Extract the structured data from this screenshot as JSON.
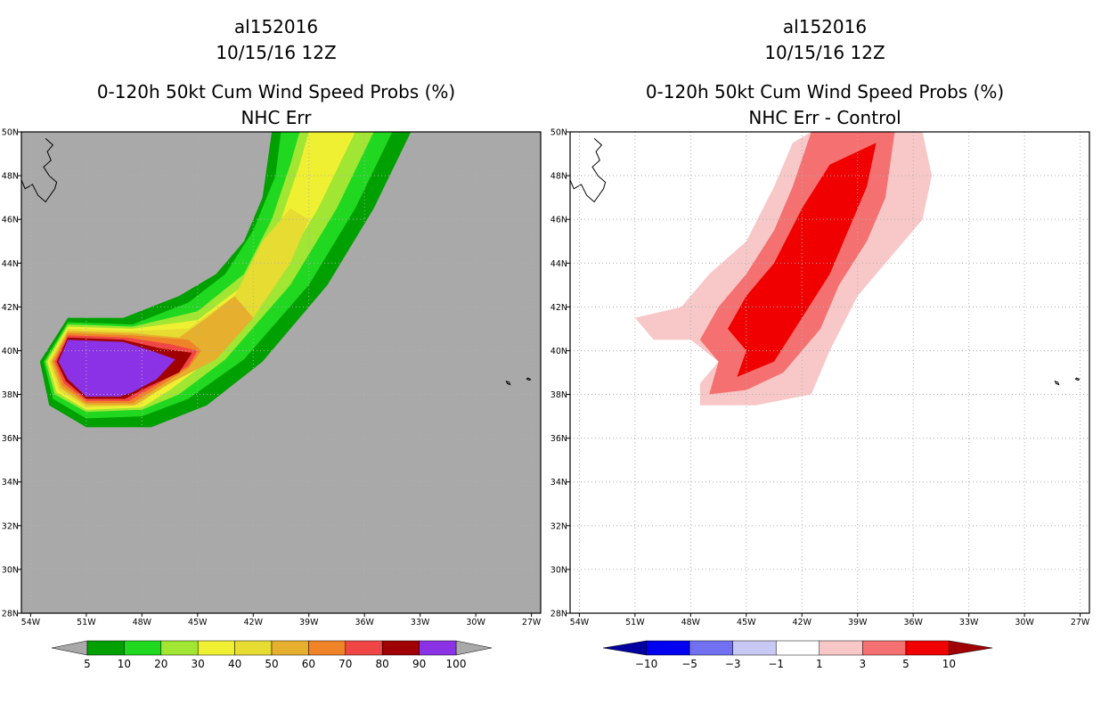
{
  "chart_data": [
    {
      "type": "heatmap",
      "storm_id": "al152016",
      "datetime": "10/15/16 12Z",
      "title": "0-120h 50kt Cum Wind Speed Probs (%)",
      "subtitle": "NHC Err",
      "xlabel": "",
      "ylabel": "",
      "x_ticks": [
        "54W",
        "51W",
        "48W",
        "45W",
        "42W",
        "39W",
        "36W",
        "33W",
        "30W",
        "27W"
      ],
      "y_ticks": [
        "28N",
        "30N",
        "32N",
        "34N",
        "36N",
        "38N",
        "40N",
        "42N",
        "44N",
        "46N",
        "48N",
        "50N"
      ],
      "lon_range": [
        -54.5,
        -26.5
      ],
      "lat_range": [
        28,
        50
      ],
      "grid": true,
      "background_color": "#a9a9a9",
      "colorbar": {
        "labels": [
          "5",
          "10",
          "20",
          "30",
          "40",
          "50",
          "60",
          "70",
          "80",
          "90",
          "100"
        ],
        "colors": [
          "#00a000",
          "#20d820",
          "#a0e632",
          "#f0f032",
          "#e6dc32",
          "#e6af2d",
          "#f08228",
          "#f04646",
          "#a00000",
          "#8c32e6"
        ],
        "end_color": "#a9a9a9",
        "extend": "both"
      },
      "contours": [
        {
          "level": 5,
          "color": "#00a000",
          "polygon": [
            [
              -51,
              36.5
            ],
            [
              -53,
              37.5
            ],
            [
              -53.5,
              39.5
            ],
            [
              -52,
              41.5
            ],
            [
              -49,
              41.5
            ],
            [
              -46,
              42.5
            ],
            [
              -44,
              43.5
            ],
            [
              -42.5,
              45
            ],
            [
              -41.5,
              47
            ],
            [
              -41,
              50
            ],
            [
              -33.5,
              50
            ],
            [
              -35.5,
              46.5
            ],
            [
              -38,
              43
            ],
            [
              -41.5,
              39.5
            ],
            [
              -44.5,
              37.5
            ],
            [
              -47.5,
              36.5
            ]
          ]
        },
        {
          "level": 10,
          "color": "#20d820",
          "polygon": [
            [
              -51,
              36.9
            ],
            [
              -52.8,
              37.8
            ],
            [
              -53.3,
              39.5
            ],
            [
              -52,
              41.3
            ],
            [
              -48.5,
              41.2
            ],
            [
              -45.5,
              42.2
            ],
            [
              -43.5,
              43.5
            ],
            [
              -42,
              45.5
            ],
            [
              -40.8,
              48
            ],
            [
              -40.5,
              50
            ],
            [
              -34.5,
              50
            ],
            [
              -36.5,
              46.5
            ],
            [
              -39,
              43
            ],
            [
              -42.5,
              39.6
            ],
            [
              -45.5,
              37.8
            ],
            [
              -48,
              37
            ]
          ]
        },
        {
          "level": 20,
          "color": "#a0e632",
          "polygon": [
            [
              -51,
              37.2
            ],
            [
              -52.7,
              38
            ],
            [
              -53.2,
              39.5
            ],
            [
              -52,
              41.2
            ],
            [
              -48.5,
              41.1
            ],
            [
              -45,
              41.8
            ],
            [
              -42.5,
              43.5
            ],
            [
              -41,
              46
            ],
            [
              -40,
              48.5
            ],
            [
              -39.5,
              50
            ],
            [
              -35.5,
              50
            ],
            [
              -37.5,
              46.5
            ],
            [
              -40,
              43
            ],
            [
              -43.5,
              39.6
            ],
            [
              -46,
              38
            ],
            [
              -48,
              37.3
            ]
          ]
        },
        {
          "level": 30,
          "color": "#f0f032",
          "polygon": [
            [
              -51,
              37.3
            ],
            [
              -52.6,
              38.1
            ],
            [
              -53.1,
              39.5
            ],
            [
              -52,
              41.1
            ],
            [
              -48.5,
              41
            ],
            [
              -45,
              41.4
            ],
            [
              -42.5,
              43
            ],
            [
              -40.5,
              46
            ],
            [
              -39.5,
              48.5
            ],
            [
              -39,
              50
            ],
            [
              -36.5,
              50
            ],
            [
              -38.5,
              46.5
            ],
            [
              -41,
              43
            ],
            [
              -44,
              39.8
            ],
            [
              -46.5,
              38.2
            ],
            [
              -48,
              37.4
            ]
          ]
        },
        {
          "level": 40,
          "color": "#e6dc32",
          "polygon": [
            [
              -51,
              37.4
            ],
            [
              -52.5,
              38.2
            ],
            [
              -53,
              39.5
            ],
            [
              -52,
              41
            ],
            [
              -48.5,
              40.9
            ],
            [
              -45.5,
              41
            ],
            [
              -43,
              42.5
            ],
            [
              -41.5,
              45
            ],
            [
              -40,
              46.5
            ],
            [
              -39,
              46
            ],
            [
              -40,
              44
            ],
            [
              -42,
              41.5
            ],
            [
              -44.5,
              39.6
            ],
            [
              -47,
              38.3
            ],
            [
              -48.2,
              37.5
            ]
          ]
        },
        {
          "level": 50,
          "color": "#e6af2d",
          "polygon": [
            [
              -51,
              37.5
            ],
            [
              -52.4,
              38.3
            ],
            [
              -52.9,
              39.5
            ],
            [
              -52,
              40.9
            ],
            [
              -48.5,
              40.8
            ],
            [
              -46,
              40.6
            ],
            [
              -44.5,
              41.5
            ],
            [
              -43,
              42.5
            ],
            [
              -42,
              41.5
            ],
            [
              -44,
              39.6
            ],
            [
              -46.5,
              38.5
            ],
            [
              -48.4,
              37.5
            ]
          ]
        },
        {
          "level": 60,
          "color": "#f08228",
          "polygon": [
            [
              -51,
              37.6
            ],
            [
              -52.3,
              38.4
            ],
            [
              -52.8,
              39.5
            ],
            [
              -52,
              40.8
            ],
            [
              -48.5,
              40.7
            ],
            [
              -45.5,
              40.5
            ],
            [
              -44.8,
              40
            ],
            [
              -45.5,
              39.2
            ],
            [
              -47,
              38.4
            ],
            [
              -48.5,
              37.6
            ]
          ]
        },
        {
          "level": 70,
          "color": "#f04646",
          "polygon": [
            [
              -51,
              37.7
            ],
            [
              -52.2,
              38.5
            ],
            [
              -52.7,
              39.5
            ],
            [
              -52,
              40.7
            ],
            [
              -48.8,
              40.6
            ],
            [
              -46.5,
              40.3
            ],
            [
              -45,
              40
            ],
            [
              -45.5,
              39.3
            ],
            [
              -47.5,
              38.3
            ],
            [
              -48.7,
              37.7
            ]
          ]
        },
        {
          "level": 80,
          "color": "#a00000",
          "polygon": [
            [
              -51,
              37.8
            ],
            [
              -52.1,
              38.6
            ],
            [
              -52.6,
              39.5
            ],
            [
              -52,
              40.6
            ],
            [
              -49,
              40.5
            ],
            [
              -47,
              40.1
            ],
            [
              -45.3,
              39.9
            ],
            [
              -46,
              39
            ],
            [
              -47.8,
              38.3
            ],
            [
              -48.9,
              37.8
            ]
          ]
        },
        {
          "level": 90,
          "color": "#8c32e6",
          "polygon": [
            [
              -51,
              37.9
            ],
            [
              -52,
              38.7
            ],
            [
              -52.5,
              39.5
            ],
            [
              -52,
              40.5
            ],
            [
              -49,
              40.4
            ],
            [
              -47.5,
              40
            ],
            [
              -46.2,
              39.6
            ],
            [
              -47.2,
              38.7
            ],
            [
              -48.5,
              38.1
            ],
            [
              -49.2,
              37.9
            ]
          ]
        }
      ]
    },
    {
      "type": "heatmap",
      "storm_id": "al152016",
      "datetime": "10/15/16 12Z",
      "title": "0-120h 50kt Cum Wind Speed Probs (%)",
      "subtitle": "NHC Err - Control",
      "xlabel": "",
      "ylabel": "",
      "x_ticks": [
        "54W",
        "51W",
        "48W",
        "45W",
        "42W",
        "39W",
        "36W",
        "33W",
        "30W",
        "27W"
      ],
      "y_ticks": [
        "28N",
        "30N",
        "32N",
        "34N",
        "36N",
        "38N",
        "40N",
        "42N",
        "44N",
        "46N",
        "48N",
        "50N"
      ],
      "lon_range": [
        -54.5,
        -26.5
      ],
      "lat_range": [
        28,
        50
      ],
      "grid": true,
      "background_color": "#ffffff",
      "colorbar": {
        "labels": [
          "-10",
          "-5",
          "-3",
          "-1",
          "1",
          "3",
          "5",
          "10"
        ],
        "colors": [
          "#0000a0",
          "#0000f0",
          "#7070f0",
          "#c8c8f5",
          "#ffffff",
          "#f8c8c8",
          "#f57070",
          "#f00000",
          "#a00000"
        ],
        "extend": "both"
      },
      "contours": [
        {
          "level": 1,
          "color": "#f8c8c8",
          "polygon": [
            [
              -47.5,
              37.5
            ],
            [
              -47.5,
              38.5
            ],
            [
              -46.5,
              39.5
            ],
            [
              -48,
              40.5
            ],
            [
              -50,
              40.5
            ],
            [
              -51,
              41.5
            ],
            [
              -48.5,
              42
            ],
            [
              -47,
              43.5
            ],
            [
              -45,
              45
            ],
            [
              -43.5,
              47.5
            ],
            [
              -42.5,
              49.5
            ],
            [
              -41.5,
              50
            ],
            [
              -35.5,
              50
            ],
            [
              -35,
              48
            ],
            [
              -35.5,
              46
            ],
            [
              -37.5,
              44
            ],
            [
              -39,
              42.5
            ],
            [
              -40.5,
              40
            ],
            [
              -41.5,
              38
            ],
            [
              -44.5,
              37.5
            ]
          ]
        },
        {
          "level": 3,
          "color": "#f57070",
          "polygon": [
            [
              -47,
              38
            ],
            [
              -46.5,
              39.5
            ],
            [
              -47.5,
              40.5
            ],
            [
              -46.5,
              42
            ],
            [
              -45,
              43.5
            ],
            [
              -43.5,
              45.5
            ],
            [
              -42.5,
              47.5
            ],
            [
              -41.5,
              50
            ],
            [
              -37,
              50
            ],
            [
              -37.5,
              47
            ],
            [
              -38.5,
              45
            ],
            [
              -40,
              43
            ],
            [
              -41,
              41
            ],
            [
              -43,
              39
            ],
            [
              -45,
              38.2
            ]
          ]
        },
        {
          "level": 5,
          "color": "#f00000",
          "polygon": [
            [
              -45.5,
              38.8
            ],
            [
              -45,
              40
            ],
            [
              -46,
              41
            ],
            [
              -45,
              42.5
            ],
            [
              -43.5,
              44
            ],
            [
              -42,
              46.5
            ],
            [
              -40.5,
              48.5
            ],
            [
              -38,
              49.5
            ],
            [
              -38.5,
              47.5
            ],
            [
              -39.5,
              45.5
            ],
            [
              -40.5,
              43.5
            ],
            [
              -42,
              41.5
            ],
            [
              -43.5,
              39.5
            ]
          ]
        }
      ]
    }
  ],
  "land": {
    "newfoundland": [
      [
        -53.2,
        49.7
      ],
      [
        -52.8,
        49.4
      ],
      [
        -53.1,
        49.1
      ],
      [
        -52.9,
        48.7
      ],
      [
        -53.3,
        48.4
      ],
      [
        -53.0,
        48.0
      ],
      [
        -52.6,
        47.7
      ],
      [
        -52.7,
        47.4
      ],
      [
        -53.2,
        46.8
      ],
      [
        -53.6,
        47.1
      ],
      [
        -53.9,
        47.6
      ],
      [
        -54.3,
        47.4
      ],
      [
        -54.5,
        47.8
      ]
    ],
    "islands": [
      [
        [
          -28.35,
          38.6
        ],
        [
          -28.2,
          38.55
        ],
        [
          -28.15,
          38.45
        ],
        [
          -28.3,
          38.5
        ]
      ],
      [
        [
          -27.2,
          38.75
        ],
        [
          -27.05,
          38.7
        ],
        [
          -27.1,
          38.65
        ],
        [
          -27.25,
          38.7
        ]
      ]
    ]
  }
}
